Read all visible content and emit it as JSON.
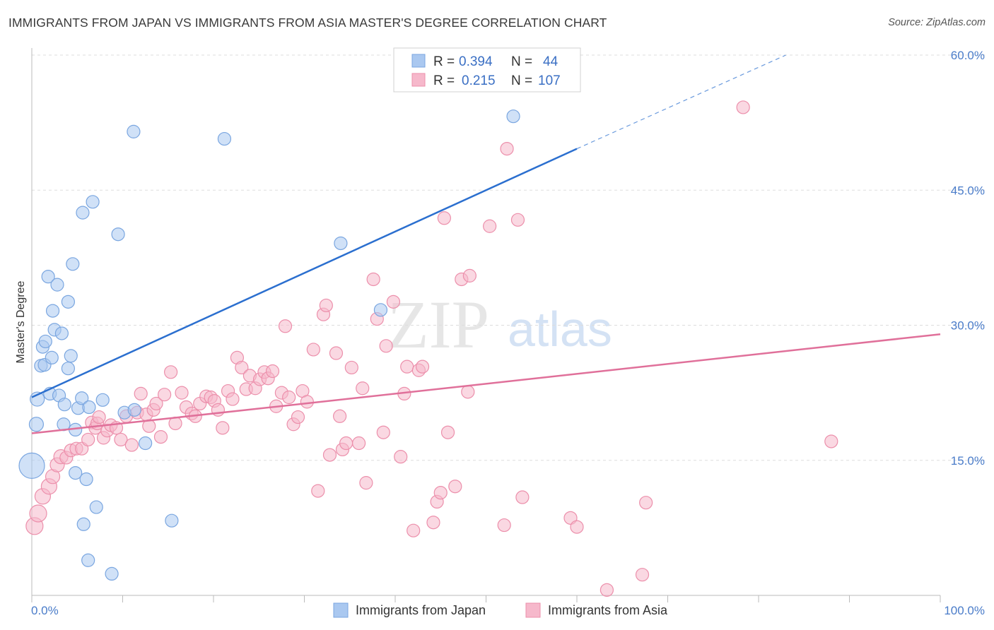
{
  "title": "IMMIGRANTS FROM JAPAN VS IMMIGRANTS FROM ASIA MASTER'S DEGREE CORRELATION CHART",
  "source": "Source: ZipAtlas.com",
  "watermark": {
    "zip": "ZIP",
    "atlas": "atlas"
  },
  "colors": {
    "japan_fill": "#aac8f0",
    "japan_stroke": "#7aa6e0",
    "japan_line": "#2b6fcf",
    "asia_fill": "#f6b8cb",
    "asia_stroke": "#ec8fab",
    "asia_line": "#e0709a",
    "grid": "#dddddd",
    "axis_text": "#4a7cc9"
  },
  "legend": {
    "japan": {
      "r_label": "R =",
      "r_value": "0.394",
      "n_label": "N =",
      "n_value": "44"
    },
    "asia": {
      "r_label": "R =",
      "r_value": "0.215",
      "n_label": "N =",
      "n_value": "107"
    }
  },
  "bottom_legend": {
    "japan": "Immigrants from Japan",
    "asia": "Immigrants from Asia"
  },
  "chart_data": {
    "type": "scatter",
    "title": "IMMIGRANTS FROM JAPAN VS IMMIGRANTS FROM ASIA MASTER'S DEGREE CORRELATION CHART",
    "xlabel": "",
    "ylabel": "Master's Degree",
    "xlim": [
      0,
      100
    ],
    "ylim": [
      0,
      60
    ],
    "x_tick_labels": [
      "0.0%",
      "100.0%"
    ],
    "y_ticks": [
      15,
      30,
      45,
      60
    ],
    "y_tick_labels": [
      "15.0%",
      "30.0%",
      "45.0%",
      "60.0%"
    ],
    "grid": true,
    "legend_position": "top-center",
    "series": [
      {
        "name": "Immigrants from Japan",
        "R": 0.394,
        "N": 44,
        "trend": {
          "x0": 0,
          "y0": 22.0,
          "x1": 60,
          "y1": 49.6,
          "dash_x_end": 83,
          "dash_y_end": 60.0
        },
        "points": [
          {
            "x": 0.0,
            "y": 14.4,
            "s": 18
          },
          {
            "x": 0.5,
            "y": 19.0,
            "s": 10
          },
          {
            "x": 0.6,
            "y": 21.8,
            "s": 10
          },
          {
            "x": 1.0,
            "y": 25.5,
            "s": 9
          },
          {
            "x": 1.2,
            "y": 27.6,
            "s": 9
          },
          {
            "x": 1.4,
            "y": 25.6,
            "s": 9
          },
          {
            "x": 1.5,
            "y": 28.2,
            "s": 9
          },
          {
            "x": 1.8,
            "y": 35.4,
            "s": 9
          },
          {
            "x": 2.0,
            "y": 22.4,
            "s": 9
          },
          {
            "x": 2.2,
            "y": 26.4,
            "s": 9
          },
          {
            "x": 2.3,
            "y": 31.6,
            "s": 9
          },
          {
            "x": 2.5,
            "y": 29.5,
            "s": 9
          },
          {
            "x": 2.8,
            "y": 34.5,
            "s": 9
          },
          {
            "x": 3.0,
            "y": 22.2,
            "s": 9
          },
          {
            "x": 3.3,
            "y": 29.1,
            "s": 9
          },
          {
            "x": 3.5,
            "y": 19.0,
            "s": 9
          },
          {
            "x": 3.6,
            "y": 21.2,
            "s": 9
          },
          {
            "x": 4.0,
            "y": 25.2,
            "s": 9
          },
          {
            "x": 4.0,
            "y": 32.6,
            "s": 9
          },
          {
            "x": 4.3,
            "y": 26.6,
            "s": 9
          },
          {
            "x": 4.5,
            "y": 36.8,
            "s": 9
          },
          {
            "x": 4.8,
            "y": 13.6,
            "s": 9
          },
          {
            "x": 4.8,
            "y": 18.4,
            "s": 9
          },
          {
            "x": 5.1,
            "y": 20.8,
            "s": 9
          },
          {
            "x": 5.5,
            "y": 21.9,
            "s": 9
          },
          {
            "x": 5.6,
            "y": 42.5,
            "s": 9
          },
          {
            "x": 5.7,
            "y": 7.9,
            "s": 9
          },
          {
            "x": 6.0,
            "y": 12.9,
            "s": 9
          },
          {
            "x": 6.2,
            "y": 3.9,
            "s": 9
          },
          {
            "x": 6.3,
            "y": 20.9,
            "s": 9
          },
          {
            "x": 6.7,
            "y": 43.7,
            "s": 9
          },
          {
            "x": 7.1,
            "y": 9.8,
            "s": 9
          },
          {
            "x": 7.8,
            "y": 21.7,
            "s": 9
          },
          {
            "x": 8.8,
            "y": 2.4,
            "s": 9
          },
          {
            "x": 9.5,
            "y": 40.1,
            "s": 9
          },
          {
            "x": 10.2,
            "y": 20.3,
            "s": 9
          },
          {
            "x": 11.2,
            "y": 51.5,
            "s": 9
          },
          {
            "x": 11.3,
            "y": 20.6,
            "s": 9
          },
          {
            "x": 12.5,
            "y": 16.9,
            "s": 9
          },
          {
            "x": 15.4,
            "y": 8.3,
            "s": 9
          },
          {
            "x": 21.2,
            "y": 50.7,
            "s": 9
          },
          {
            "x": 34.0,
            "y": 39.1,
            "s": 9
          },
          {
            "x": 38.4,
            "y": 31.7,
            "s": 9
          },
          {
            "x": 53.0,
            "y": 53.2,
            "s": 9
          }
        ]
      },
      {
        "name": "Immigrants from Asia",
        "R": 0.215,
        "N": 107,
        "trend": {
          "x0": 0,
          "y0": 18.0,
          "x1": 100,
          "y1": 29.0
        },
        "points": [
          {
            "x": 0.3,
            "y": 7.7,
            "s": 12
          },
          {
            "x": 0.7,
            "y": 9.1,
            "s": 12
          },
          {
            "x": 1.2,
            "y": 11.0,
            "s": 11
          },
          {
            "x": 1.9,
            "y": 12.1,
            "s": 11
          },
          {
            "x": 2.3,
            "y": 13.2,
            "s": 10
          },
          {
            "x": 2.8,
            "y": 14.5,
            "s": 10
          },
          {
            "x": 3.2,
            "y": 15.4,
            "s": 10
          },
          {
            "x": 3.8,
            "y": 15.3,
            "s": 9
          },
          {
            "x": 4.3,
            "y": 16.1,
            "s": 9
          },
          {
            "x": 4.9,
            "y": 16.3,
            "s": 9
          },
          {
            "x": 5.5,
            "y": 16.3,
            "s": 9
          },
          {
            "x": 6.2,
            "y": 17.3,
            "s": 9
          },
          {
            "x": 6.6,
            "y": 19.2,
            "s": 9
          },
          {
            "x": 7.0,
            "y": 18.6,
            "s": 9
          },
          {
            "x": 7.2,
            "y": 19.1,
            "s": 9
          },
          {
            "x": 7.4,
            "y": 19.8,
            "s": 9
          },
          {
            "x": 7.9,
            "y": 17.5,
            "s": 9
          },
          {
            "x": 8.3,
            "y": 18.3,
            "s": 9
          },
          {
            "x": 8.7,
            "y": 18.9,
            "s": 9
          },
          {
            "x": 9.3,
            "y": 18.6,
            "s": 9
          },
          {
            "x": 9.8,
            "y": 17.3,
            "s": 9
          },
          {
            "x": 10.4,
            "y": 19.9,
            "s": 9
          },
          {
            "x": 11.0,
            "y": 16.7,
            "s": 9
          },
          {
            "x": 11.6,
            "y": 20.3,
            "s": 9
          },
          {
            "x": 12.0,
            "y": 22.4,
            "s": 9
          },
          {
            "x": 12.6,
            "y": 20.1,
            "s": 9
          },
          {
            "x": 12.9,
            "y": 18.8,
            "s": 9
          },
          {
            "x": 13.4,
            "y": 20.6,
            "s": 9
          },
          {
            "x": 13.7,
            "y": 21.3,
            "s": 9
          },
          {
            "x": 14.2,
            "y": 17.6,
            "s": 9
          },
          {
            "x": 14.6,
            "y": 22.3,
            "s": 9
          },
          {
            "x": 15.3,
            "y": 24.8,
            "s": 9
          },
          {
            "x": 15.8,
            "y": 19.1,
            "s": 9
          },
          {
            "x": 16.5,
            "y": 22.5,
            "s": 9
          },
          {
            "x": 17.0,
            "y": 20.9,
            "s": 9
          },
          {
            "x": 17.6,
            "y": 20.2,
            "s": 9
          },
          {
            "x": 18.0,
            "y": 19.9,
            "s": 9
          },
          {
            "x": 18.5,
            "y": 21.3,
            "s": 9
          },
          {
            "x": 19.2,
            "y": 22.1,
            "s": 9
          },
          {
            "x": 19.7,
            "y": 22.0,
            "s": 9
          },
          {
            "x": 20.1,
            "y": 21.6,
            "s": 9
          },
          {
            "x": 20.5,
            "y": 20.6,
            "s": 9
          },
          {
            "x": 21.0,
            "y": 18.6,
            "s": 9
          },
          {
            "x": 21.6,
            "y": 22.7,
            "s": 9
          },
          {
            "x": 22.1,
            "y": 21.8,
            "s": 9
          },
          {
            "x": 22.6,
            "y": 26.4,
            "s": 9
          },
          {
            "x": 23.1,
            "y": 25.3,
            "s": 9
          },
          {
            "x": 23.6,
            "y": 22.9,
            "s": 9
          },
          {
            "x": 24.0,
            "y": 24.4,
            "s": 9
          },
          {
            "x": 24.6,
            "y": 23.0,
            "s": 9
          },
          {
            "x": 25.1,
            "y": 24.0,
            "s": 9
          },
          {
            "x": 25.6,
            "y": 24.8,
            "s": 9
          },
          {
            "x": 26.0,
            "y": 24.1,
            "s": 9
          },
          {
            "x": 26.5,
            "y": 24.9,
            "s": 9
          },
          {
            "x": 26.9,
            "y": 21.0,
            "s": 9
          },
          {
            "x": 27.5,
            "y": 22.5,
            "s": 9
          },
          {
            "x": 27.9,
            "y": 29.9,
            "s": 9
          },
          {
            "x": 28.3,
            "y": 22.0,
            "s": 9
          },
          {
            "x": 28.8,
            "y": 19.0,
            "s": 9
          },
          {
            "x": 29.3,
            "y": 19.8,
            "s": 9
          },
          {
            "x": 29.8,
            "y": 22.7,
            "s": 9
          },
          {
            "x": 30.3,
            "y": 21.5,
            "s": 9
          },
          {
            "x": 31.0,
            "y": 27.3,
            "s": 9
          },
          {
            "x": 31.5,
            "y": 11.6,
            "s": 9
          },
          {
            "x": 32.1,
            "y": 31.2,
            "s": 9
          },
          {
            "x": 32.4,
            "y": 32.2,
            "s": 9
          },
          {
            "x": 32.8,
            "y": 15.6,
            "s": 9
          },
          {
            "x": 33.5,
            "y": 26.9,
            "s": 9
          },
          {
            "x": 33.9,
            "y": 19.9,
            "s": 9
          },
          {
            "x": 34.2,
            "y": 16.2,
            "s": 9
          },
          {
            "x": 34.6,
            "y": 16.9,
            "s": 9
          },
          {
            "x": 35.2,
            "y": 25.3,
            "s": 9
          },
          {
            "x": 36.0,
            "y": 16.9,
            "s": 9
          },
          {
            "x": 36.4,
            "y": 23.0,
            "s": 9
          },
          {
            "x": 36.8,
            "y": 12.5,
            "s": 9
          },
          {
            "x": 37.6,
            "y": 35.1,
            "s": 9
          },
          {
            "x": 38.0,
            "y": 30.7,
            "s": 9
          },
          {
            "x": 38.7,
            "y": 18.1,
            "s": 9
          },
          {
            "x": 39.0,
            "y": 27.7,
            "s": 9
          },
          {
            "x": 39.8,
            "y": 32.6,
            "s": 9
          },
          {
            "x": 40.6,
            "y": 15.4,
            "s": 9
          },
          {
            "x": 41.0,
            "y": 22.4,
            "s": 9
          },
          {
            "x": 41.3,
            "y": 25.4,
            "s": 9
          },
          {
            "x": 42.0,
            "y": 7.2,
            "s": 9
          },
          {
            "x": 42.6,
            "y": 25.0,
            "s": 9
          },
          {
            "x": 43.0,
            "y": 25.4,
            "s": 9
          },
          {
            "x": 44.2,
            "y": 8.1,
            "s": 9
          },
          {
            "x": 44.6,
            "y": 10.4,
            "s": 9
          },
          {
            "x": 45.0,
            "y": 11.4,
            "s": 9
          },
          {
            "x": 45.4,
            "y": 41.9,
            "s": 9
          },
          {
            "x": 45.8,
            "y": 18.1,
            "s": 9
          },
          {
            "x": 46.6,
            "y": 12.1,
            "s": 9
          },
          {
            "x": 47.3,
            "y": 35.1,
            "s": 9
          },
          {
            "x": 48.0,
            "y": 22.6,
            "s": 9
          },
          {
            "x": 48.2,
            "y": 35.5,
            "s": 9
          },
          {
            "x": 50.4,
            "y": 41.0,
            "s": 9
          },
          {
            "x": 52.0,
            "y": 7.8,
            "s": 9
          },
          {
            "x": 52.3,
            "y": 49.6,
            "s": 9
          },
          {
            "x": 53.5,
            "y": 41.7,
            "s": 9
          },
          {
            "x": 54.0,
            "y": 10.9,
            "s": 9
          },
          {
            "x": 59.3,
            "y": 8.6,
            "s": 9
          },
          {
            "x": 60.0,
            "y": 7.6,
            "s": 9
          },
          {
            "x": 63.3,
            "y": 0.6,
            "s": 9
          },
          {
            "x": 67.2,
            "y": 2.3,
            "s": 9
          },
          {
            "x": 67.6,
            "y": 10.3,
            "s": 9
          },
          {
            "x": 78.3,
            "y": 54.2,
            "s": 9
          },
          {
            "x": 88.0,
            "y": 17.1,
            "s": 9
          }
        ]
      }
    ]
  }
}
